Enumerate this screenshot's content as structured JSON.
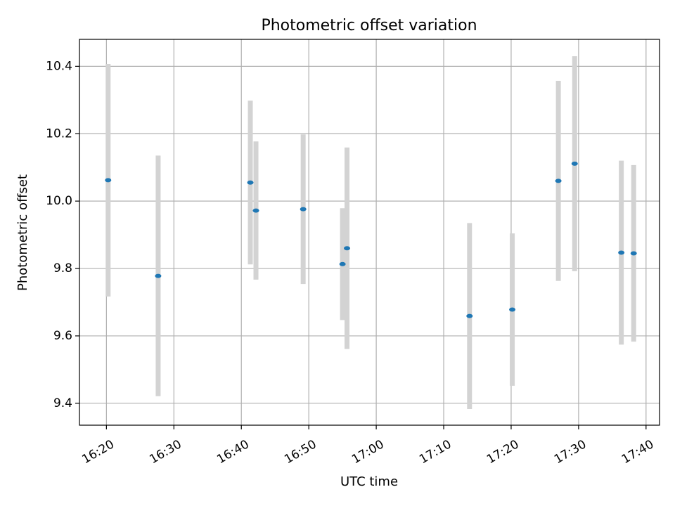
{
  "chart_data": {
    "type": "scatter",
    "title": "Photometric offset variation",
    "xlabel": "UTC time",
    "ylabel": "Photometric offset",
    "grid": true,
    "colors": {
      "point": "#1f77b4",
      "errorbar": "#d3d3d3",
      "grid": "#b0b0b0"
    },
    "xticks": [
      "16:20",
      "16:30",
      "16:40",
      "16:50",
      "17:00",
      "17:10",
      "17:20",
      "17:30",
      "17:40"
    ],
    "yticks": [
      "9.4",
      "9.6",
      "9.8",
      "10.0",
      "10.2",
      "10.4"
    ],
    "xlim": [
      "16:16",
      "17:42"
    ],
    "ylim": [
      9.335,
      10.48
    ],
    "points": [
      {
        "x": "16:20:15",
        "y": 10.062,
        "err": 0.345
      },
      {
        "x": "16:27:40",
        "y": 9.778,
        "err": 0.357
      },
      {
        "x": "16:41:20",
        "y": 10.055,
        "err": 0.243
      },
      {
        "x": "16:42:10",
        "y": 9.972,
        "err": 0.205
      },
      {
        "x": "16:49:10",
        "y": 9.976,
        "err": 0.222
      },
      {
        "x": "16:55:00",
        "y": 9.813,
        "err": 0.166
      },
      {
        "x": "16:55:40",
        "y": 9.86,
        "err": 0.299
      },
      {
        "x": "17:13:50",
        "y": 9.659,
        "err": 0.276
      },
      {
        "x": "17:20:10",
        "y": 9.678,
        "err": 0.226
      },
      {
        "x": "17:27:00",
        "y": 10.06,
        "err": 0.297
      },
      {
        "x": "17:29:25",
        "y": 10.111,
        "err": 0.319
      },
      {
        "x": "17:36:20",
        "y": 9.847,
        "err": 0.273
      },
      {
        "x": "17:38:10",
        "y": 9.845,
        "err": 0.262
      }
    ]
  }
}
